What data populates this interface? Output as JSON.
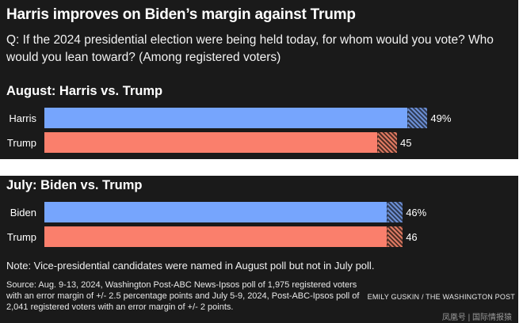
{
  "header": {
    "title": "Harris improves on Biden’s margin against Trump",
    "question": "Q: If the 2024 presidential election were being held today, for whom would you vote? Who would you lean toward? (Among registered voters)"
  },
  "colors": {
    "harris_biden_blue": "#76a5fd",
    "trump_red": "#fa7f6c",
    "panel_background": "#1a1a1a"
  },
  "chart_data": [
    {
      "type": "bar",
      "orientation": "horizontal",
      "title": "August: Harris vs. Trump",
      "categories": [
        "Harris",
        "Trump"
      ],
      "values": [
        49,
        45
      ],
      "value_labels": [
        "49%",
        "45"
      ],
      "margin_of_error": 2.5,
      "unit": "%"
    },
    {
      "type": "bar",
      "orientation": "horizontal",
      "title": "July: Biden vs. Trump",
      "categories": [
        "Biden",
        "Trump"
      ],
      "values": [
        46,
        46
      ],
      "value_labels": [
        "46%",
        "46"
      ],
      "margin_of_error": 2,
      "unit": "%"
    }
  ],
  "footer": {
    "note": "Note: Vice-presidential candidates were named in August poll but not in July poll.",
    "source": "Source: Aug. 9-13, 2024, Washington Post-ABC News-Ipsos poll of 1,975 registered voters with an error margin of +/- 2.5 percentage points and July 5-9, 2024, Post-ABC-Ipsos poll of 2,041 registered voters with an error margin of +/- 2 points.",
    "credit": "EMILY GUSKIN / THE WASHINGTON POST",
    "watermark": "凤凰号 | 国际情报猿"
  }
}
